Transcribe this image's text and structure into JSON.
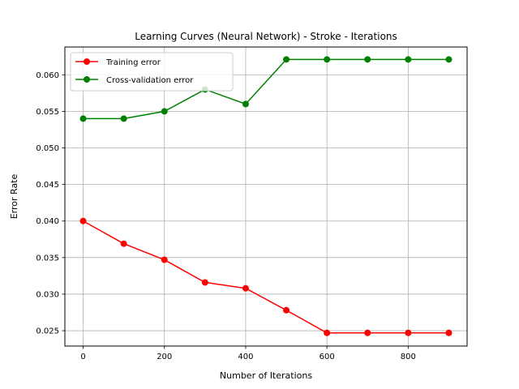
{
  "chart_data": {
    "type": "line",
    "title": "Learning Curves (Neural Network) - Stroke - Iterations",
    "xlabel": "Number of Iterations",
    "ylabel": "Error Rate",
    "x": [
      0,
      100,
      200,
      300,
      400,
      500,
      600,
      700,
      800,
      900
    ],
    "xlim": [
      -45,
      945
    ],
    "ylim": [
      0.0229,
      0.0638
    ],
    "xticks": [
      0,
      200,
      400,
      600,
      800
    ],
    "xtick_labels": [
      "0",
      "200",
      "400",
      "600",
      "800"
    ],
    "yticks": [
      0.025,
      0.03,
      0.035,
      0.04,
      0.045,
      0.05,
      0.055,
      0.06
    ],
    "ytick_labels": [
      "0.025",
      "0.030",
      "0.035",
      "0.040",
      "0.045",
      "0.050",
      "0.055",
      "0.060"
    ],
    "grid": true,
    "legend_position": "upper-left",
    "series": [
      {
        "name": "Training error",
        "color": "#ff0000",
        "values": [
          0.04,
          0.0369,
          0.0347,
          0.0316,
          0.0308,
          0.0278,
          0.0247,
          0.0247,
          0.0247,
          0.0247
        ]
      },
      {
        "name": "Cross-validation error",
        "color": "#008000",
        "values": [
          0.054,
          0.054,
          0.055,
          0.058,
          0.056,
          0.0621,
          0.0621,
          0.0621,
          0.0621,
          0.0621
        ]
      }
    ]
  }
}
